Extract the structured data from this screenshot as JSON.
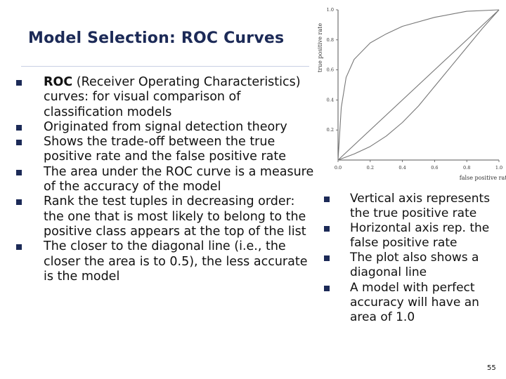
{
  "slide": {
    "title": "Model Selection: ROC Curves",
    "page_number": "55",
    "left_bullets": [
      {
        "strong": "ROC",
        "text": " (Receiver Operating Characteristics) curves: for visual comparison of classification models"
      },
      {
        "strong": "",
        "text": "Originated from signal detection theory"
      },
      {
        "strong": "",
        "text": "Shows the trade-off between the true positive rate and the false positive rate"
      },
      {
        "strong": "",
        "text": "The area under the ROC curve is a measure of the accuracy of the model"
      },
      {
        "strong": "",
        "text": "Rank the test tuples in decreasing order: the one that is most likely to belong to the positive class appears at the top of the list"
      },
      {
        "strong": "",
        "text": "The closer to the diagonal line (i.e., the closer the area is to 0.5), the less accurate is the model"
      }
    ],
    "right_bullets": [
      "Vertical axis represents the true positive rate",
      "Horizontal axis rep. the false positive rate",
      "The plot also shows a diagonal line",
      "A model with perfect accuracy will have an area of 1.0"
    ],
    "colors": {
      "title": "#1c2a57",
      "bullet": "#1c2a57",
      "curve": "#777777"
    }
  },
  "chart_data": {
    "type": "line",
    "title": "",
    "xlabel": "false positive rate",
    "ylabel": "true positive rate",
    "xlim": [
      0,
      1.0
    ],
    "ylim": [
      0,
      1.0
    ],
    "x_ticks": [
      "0.0",
      "0.2",
      "0.4",
      "0.6",
      "0.8",
      "1.0"
    ],
    "y_ticks": [
      "0.2",
      "0.4",
      "0.6",
      "0.8",
      "1.0"
    ],
    "grid": false,
    "series": [
      {
        "x": [
          0,
          0.02,
          0.05,
          0.1,
          0.2,
          0.3,
          0.4,
          0.6,
          0.8,
          1.0
        ],
        "y": [
          0,
          0.35,
          0.55,
          0.67,
          0.78,
          0.84,
          0.89,
          0.95,
          0.99,
          1.0
        ]
      },
      {
        "x": [
          0,
          0.1,
          0.2,
          0.3,
          0.4,
          0.5,
          0.6,
          0.7,
          0.8,
          0.9,
          1.0
        ],
        "y": [
          0,
          0.04,
          0.09,
          0.16,
          0.25,
          0.36,
          0.49,
          0.62,
          0.75,
          0.88,
          1.0
        ]
      },
      {
        "x": [
          0,
          1.0
        ],
        "y": [
          0,
          1.0
        ]
      }
    ]
  }
}
